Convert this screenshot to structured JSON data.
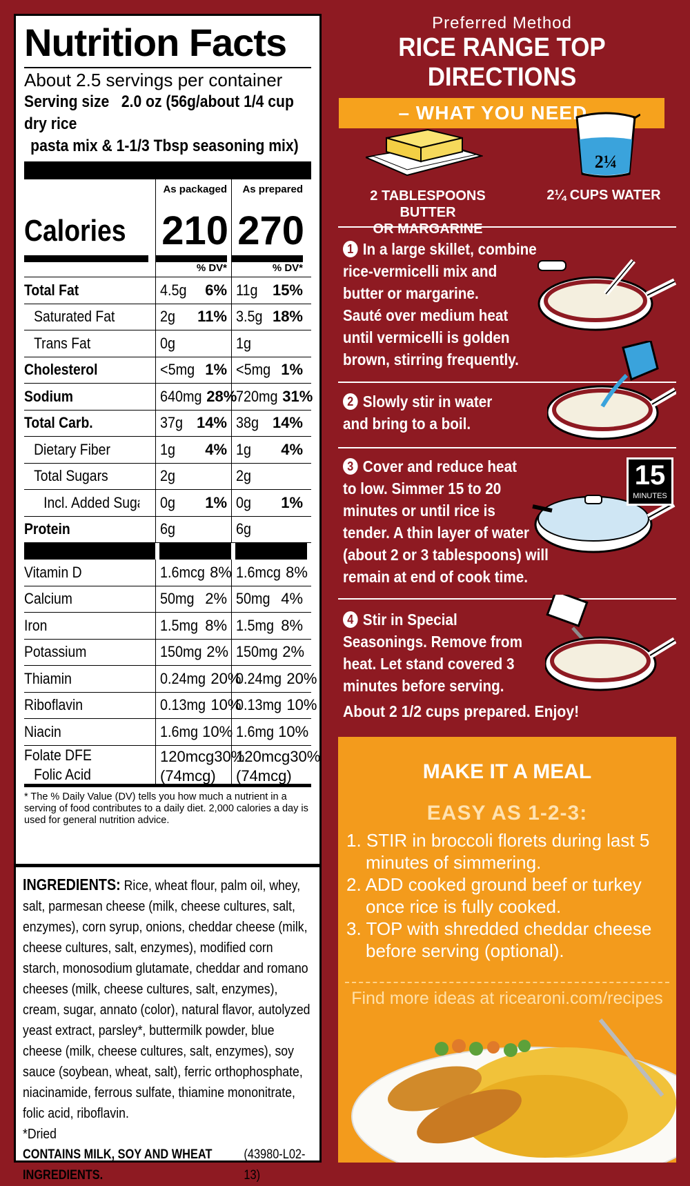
{
  "nutrition": {
    "title": "Nutrition Facts",
    "servings": "About 2.5 servings per container",
    "serving_size_label": "Serving size",
    "serving_size_line1": "2.0 oz (56g/about 1/4 cup dry rice",
    "serving_size_line2": "pasta mix & 1-1/3 Tbsp seasoning mix)",
    "col1_head": "As packaged",
    "col2_head": "As prepared",
    "calories_label": "Calories",
    "calories_packaged": "210",
    "calories_prepared": "270",
    "dv_label": "% DV*",
    "rows": [
      {
        "name": "Total Fat",
        "a1": "4.5g",
        "p1": "6%",
        "a2": "11g",
        "p2": "15%"
      },
      {
        "name": "Saturated Fat",
        "a1": "2g",
        "p1": "11%",
        "a2": "3.5g",
        "p2": "18%"
      },
      {
        "name": "Trans Fat",
        "a1": "0g",
        "p1": "",
        "a2": "1g",
        "p2": ""
      },
      {
        "name": "Cholesterol",
        "a1": "<5mg",
        "p1": "1%",
        "a2": "<5mg",
        "p2": "1%"
      },
      {
        "name": "Sodium",
        "a1": "640mg",
        "p1": "28%",
        "a2": "720mg",
        "p2": "31%"
      },
      {
        "name": "Total Carb.",
        "a1": "37g",
        "p1": "14%",
        "a2": "38g",
        "p2": "14%"
      },
      {
        "name": "Dietary Fiber",
        "a1": "1g",
        "p1": "4%",
        "a2": "1g",
        "p2": "4%"
      },
      {
        "name": "Total Sugars",
        "a1": "2g",
        "p1": "",
        "a2": "2g",
        "p2": ""
      },
      {
        "name": "Incl. Added Sugars",
        "a1": "0g",
        "p1": "1%",
        "a2": "0g",
        "p2": "1%"
      },
      {
        "name": "Protein",
        "a1": "6g",
        "p1": "",
        "a2": "6g",
        "p2": ""
      }
    ],
    "vitamins": [
      {
        "name": "Vitamin D",
        "a1": "1.6mcg",
        "p1": "8%",
        "a2": "1.6mcg",
        "p2": "8%"
      },
      {
        "name": "Calcium",
        "a1": "50mg",
        "p1": "2%",
        "a2": "50mg",
        "p2": "4%"
      },
      {
        "name": "Iron",
        "a1": "1.5mg",
        "p1": "8%",
        "a2": "1.5mg",
        "p2": "8%"
      },
      {
        "name": "Potassium",
        "a1": "150mg",
        "p1": "2%",
        "a2": "150mg",
        "p2": "2%"
      },
      {
        "name": "Thiamin",
        "a1": "0.24mg",
        "p1": "20%",
        "a2": "0.24mg",
        "p2": "20%"
      },
      {
        "name": "Riboflavin",
        "a1": "0.13mg",
        "p1": "10%",
        "a2": "0.13mg",
        "p2": "10%"
      },
      {
        "name": "Niacin",
        "a1": "1.6mg",
        "p1": "10%",
        "a2": "1.6mg",
        "p2": "10%"
      }
    ],
    "folate_label": "Folate DFE",
    "folic_label": "Folic Acid",
    "folate_a1": "120mcg",
    "folate_p1": "30%",
    "folate_a2": "120mcg",
    "folate_p2": "30%",
    "folic_a1": "(74mcg)",
    "folic_a2": "(74mcg)",
    "footnote": "* The % Daily Value (DV) tells you how much a nutrient in a serving of food contributes to a daily diet. 2,000 calories a day is used for general nutrition advice."
  },
  "ingredients": {
    "heading": "INGREDIENTS:",
    "text": "Rice, wheat flour, palm oil, whey, salt, parmesan cheese (milk, cheese cultures, salt, enzymes), corn syrup, onions, cheddar cheese (milk, cheese cultures, salt, enzymes), modified corn starch, monosodium glutamate, cheddar and romano cheeses (milk, cheese cultures, salt, enzymes), cream, sugar, annato (color), natural flavor, autolyzed yeast extract, parsley*, buttermilk powder, blue cheese (milk, cheese cultures, salt, enzymes), soy sauce (soybean, wheat, salt), ferric orthophosphate, niacinamide, ferrous sulfate, thiamine mononitrate, folic acid, riboflavin.",
    "dried": "*Dried",
    "contains": "CONTAINS MILK, SOY AND WHEAT INGREDIENTS.",
    "code": "(43980-L02-13)"
  },
  "directions": {
    "preferred": "Preferred Method",
    "title": "RICE RANGE TOP DIRECTIONS",
    "need": "– WHAT YOU NEED –",
    "item1_line1": "2 TABLESPOONS BUTTER",
    "item1_line2": "OR MARGARINE",
    "item2": "2¼ CUPS WATER",
    "cup_label": "2¼",
    "timer_num": "15",
    "timer_unit": "MINUTES",
    "steps": [
      {
        "n": "1",
        "lines": [
          "In a large skillet, combine",
          "rice-vermicelli mix and",
          "butter or margarine.",
          "Sauté over medium heat",
          "until vermicelli is golden",
          "brown, stirring frequently."
        ]
      },
      {
        "n": "2",
        "lines": [
          "Slowly stir in water",
          "and bring to a boil."
        ]
      },
      {
        "n": "3",
        "lines": [
          "Cover and reduce heat",
          "to low. Simmer 15 to 20",
          "minutes or until rice is",
          "tender. A thin layer of water",
          "(about 2 or 3 tablespoons) will",
          "remain at end of cook time."
        ]
      },
      {
        "n": "4",
        "lines": [
          "Stir in Special",
          "Seasonings. Remove from",
          "heat. Let stand covered 3",
          "minutes before serving."
        ]
      }
    ],
    "yield": "About 2 1/2 cups prepared. Enjoy!"
  },
  "meal": {
    "title": "MAKE IT A MEAL",
    "subtitle": "EASY AS 1-2-3:",
    "items": [
      "1. STIR in broccoli florets during last 5 minutes of simmering.",
      "2. ADD cooked ground beef or turkey once rice is fully cooked.",
      "3. TOP with shredded cheddar cheese before serving (optional)."
    ],
    "link": "Find more ideas at ricearoni.com/recipes"
  },
  "colors": {
    "background": "#8e1a22",
    "accent": "#f6a21d",
    "meal_bg": "#f39b1c"
  }
}
